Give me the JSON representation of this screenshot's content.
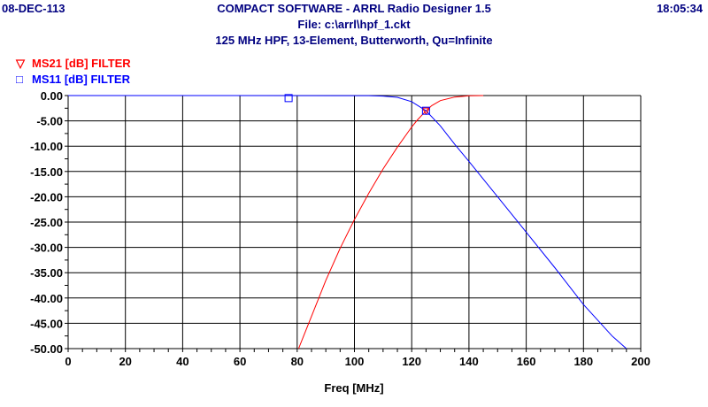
{
  "header": {
    "date": "08-DEC-113",
    "time": "18:05:34",
    "title_line1": "COMPACT SOFTWARE - ARRL Radio Designer 1.5",
    "title_line2": "File: c:\\arrl\\hpf_1.ckt",
    "title_line3": "125 MHz HPF, 13-Element, Butterworth, Qu=Infinite"
  },
  "colors": {
    "ms21": "#ff0000",
    "ms11": "#0000ff",
    "text": "#000080",
    "grid": "#000000"
  },
  "chart_data": {
    "type": "line",
    "title": "125 MHz HPF, 13-Element, Butterworth, Qu=Infinite",
    "xlabel": "Freq [MHz]",
    "ylabel": "",
    "xlim": [
      0,
      200
    ],
    "ylim": [
      -50,
      0
    ],
    "xticks": [
      "0",
      "20",
      "40",
      "60",
      "80",
      "100",
      "120",
      "140",
      "160",
      "180",
      "200"
    ],
    "yticks": [
      "0.00",
      "-5.00",
      "-10.00",
      "-15.00",
      "-20.00",
      "-25.00",
      "-30.00",
      "-35.00",
      "-40.00",
      "-45.00",
      "-50.00"
    ],
    "grid": true,
    "legend_position": "top-left",
    "series": [
      {
        "name": "MS21 [dB] FILTER",
        "symbol": "▽",
        "x": [
          80.5,
          85,
          90,
          95,
          100,
          105,
          110,
          115,
          120,
          122,
          125,
          127,
          130,
          135,
          140,
          145
        ],
        "y": [
          -50,
          -43.6,
          -36.5,
          -30.2,
          -24.5,
          -19.3,
          -14.5,
          -10.2,
          -6.2,
          -4.8,
          -3.0,
          -2.0,
          -1.0,
          -0.3,
          -0.05,
          0
        ]
      },
      {
        "name": "MS11 [dB] FILTER",
        "symbol": "□",
        "x": [
          0,
          100,
          105,
          110,
          115,
          120,
          125,
          130,
          135,
          140,
          150,
          160,
          170,
          180,
          190,
          195
        ],
        "y": [
          0,
          -0.01,
          -0.02,
          -0.1,
          -0.35,
          -1.2,
          -3.0,
          -6.0,
          -9.6,
          -13.0,
          -20.0,
          -27.0,
          -34.0,
          -41.3,
          -47.5,
          -50
        ]
      }
    ],
    "markers": [
      {
        "series": "MS21 [dB] FILTER",
        "x": 125,
        "y": -3.0
      },
      {
        "series": "MS11 [dB] FILTER",
        "x": 125,
        "y": -3.0
      },
      {
        "series": "MS11 [dB] FILTER",
        "x": 77,
        "y": -0.5
      }
    ]
  }
}
